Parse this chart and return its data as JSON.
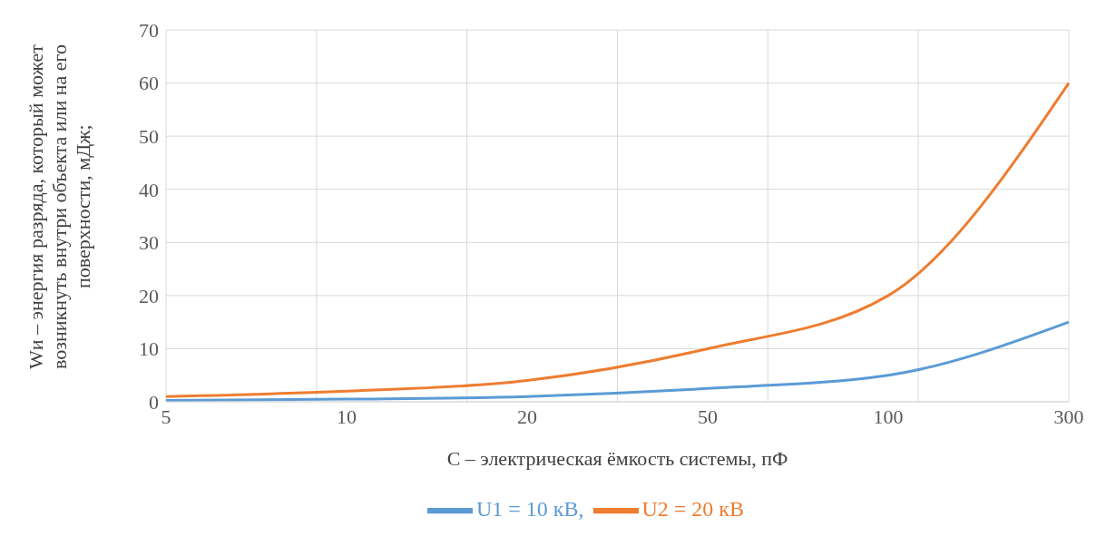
{
  "chart_data": {
    "type": "line",
    "xlabel": "C – электрическая ёмкость системы, пФ",
    "ylabel": "Wи – энергия разряда, который может возникнуть внутри объекта или на его поверхности, мДж;",
    "categories": [
      "5",
      "10",
      "20",
      "50",
      "100",
      "300"
    ],
    "series": [
      {
        "name": "U1 = 10 кВ,",
        "color": "#5b9bd5",
        "values": [
          0.25,
          0.5,
          1,
          2.5,
          5,
          15
        ]
      },
      {
        "name": "U2 = 20 кВ",
        "color": "#ed7d31",
        "values": [
          1,
          2,
          4,
          10,
          20,
          60
        ]
      }
    ],
    "ylim": [
      0,
      70
    ],
    "yticks": [
      0,
      10,
      20,
      30,
      40,
      50,
      60,
      70
    ],
    "grid": true,
    "legend": "bottom",
    "marker": "none",
    "line_style": "solid"
  }
}
